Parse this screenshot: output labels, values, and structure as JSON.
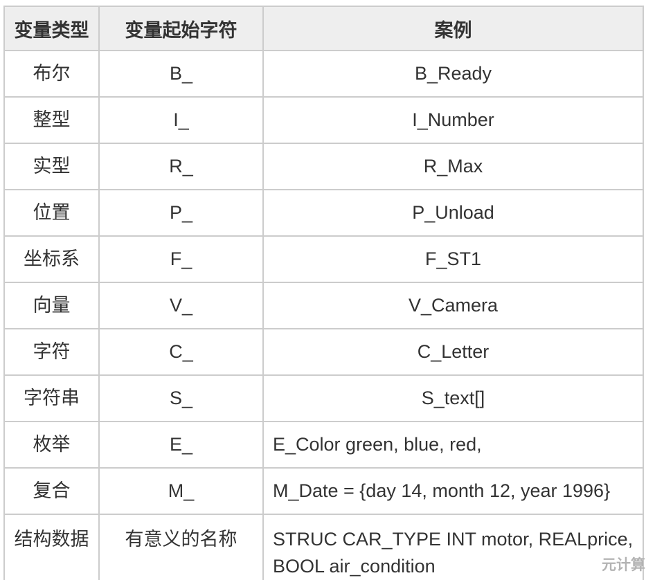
{
  "table": {
    "headers": [
      "变量类型",
      "变量起始字符",
      "案例"
    ],
    "rows": [
      {
        "type": "布尔",
        "prefix": "B_",
        "example": "B_Ready"
      },
      {
        "type": "整型",
        "prefix": "I_",
        "example": "I_Number"
      },
      {
        "type": "实型",
        "prefix": "R_",
        "example": "R_Max"
      },
      {
        "type": "位置",
        "prefix": "P_",
        "example": "P_Unload"
      },
      {
        "type": "坐标系",
        "prefix": "F_",
        "example": "F_ST1"
      },
      {
        "type": "向量",
        "prefix": "V_",
        "example": "V_Camera"
      },
      {
        "type": "字符",
        "prefix": "C_",
        "example": "C_Letter"
      },
      {
        "type": "字符串",
        "prefix": "S_",
        "example": "S_text[]"
      },
      {
        "type": "枚举",
        "prefix": "E_",
        "example": "E_Color green, blue, red,",
        "example_align": "left"
      },
      {
        "type": "复合",
        "prefix": "M_",
        "example": "M_Date = {day 14, month 12, year 1996}",
        "example_align": "left"
      },
      {
        "type": "结构数据",
        "prefix": "有意义的名称",
        "example": "STRUC CAR_TYPE INT motor, REALprice, BOOL air_condition",
        "example_align": "left",
        "valign": "top"
      }
    ]
  },
  "watermark": "元计算",
  "colors": {
    "header_background": "#eeeeee",
    "border": "#cccccc",
    "text": "#333333",
    "watermark": "#b3b3b3",
    "page_background": "#ffffff"
  }
}
